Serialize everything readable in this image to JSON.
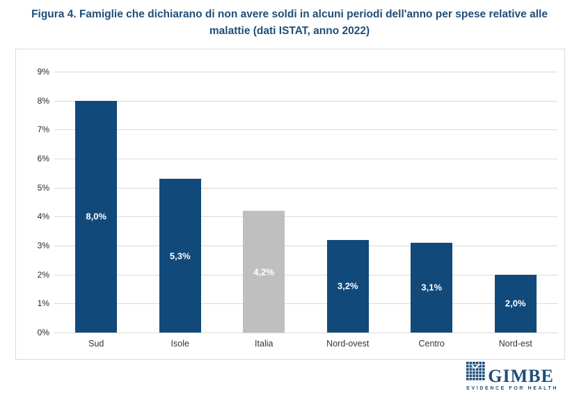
{
  "header": {
    "title": "Figura 4. Famiglie che dichiarano di non avere soldi in alcuni periodi dell'anno per spese relative alle malattie (dati ISTAT, anno 2022)"
  },
  "chart_data": {
    "type": "bar",
    "title": "Figura 4. Famiglie che dichiarano di non avere soldi in alcuni periodi dell'anno per spese relative alle malattie (dati ISTAT, anno 2022)",
    "categories": [
      "Sud",
      "Isole",
      "Italia",
      "Nord-ovest",
      "Centro",
      "Nord-est"
    ],
    "values": [
      8.0,
      5.3,
      4.2,
      3.2,
      3.1,
      2.0
    ],
    "value_labels": [
      "8,0%",
      "5,3%",
      "4,2%",
      "3,2%",
      "3,1%",
      "2,0%"
    ],
    "bar_colors": [
      "#11497B",
      "#11497B",
      "#BFBFBF",
      "#11497B",
      "#11497B",
      "#11497B"
    ],
    "ylim": [
      0,
      9
    ],
    "ytick_step": 1,
    "ytick_labels": [
      "0%",
      "1%",
      "2%",
      "3%",
      "4%",
      "5%",
      "6%",
      "7%",
      "8%",
      "9%"
    ],
    "xlabel": "",
    "ylabel": "",
    "grid": "horizontal",
    "legend": "none"
  },
  "colors": {
    "title_blue": "#1F4E79",
    "bar_blue": "#11497B",
    "bar_gray": "#BFBFBF",
    "gridline": "#D9D9D9",
    "axis_text": "#333333",
    "value_label_text": "#FFFFFF",
    "logo_blue": "#1F4E79"
  },
  "footer_logo": {
    "brand": "GIMBE",
    "tagline": "EVIDENCE FOR HEALTH",
    "icon": "mosaic-check-icon"
  }
}
